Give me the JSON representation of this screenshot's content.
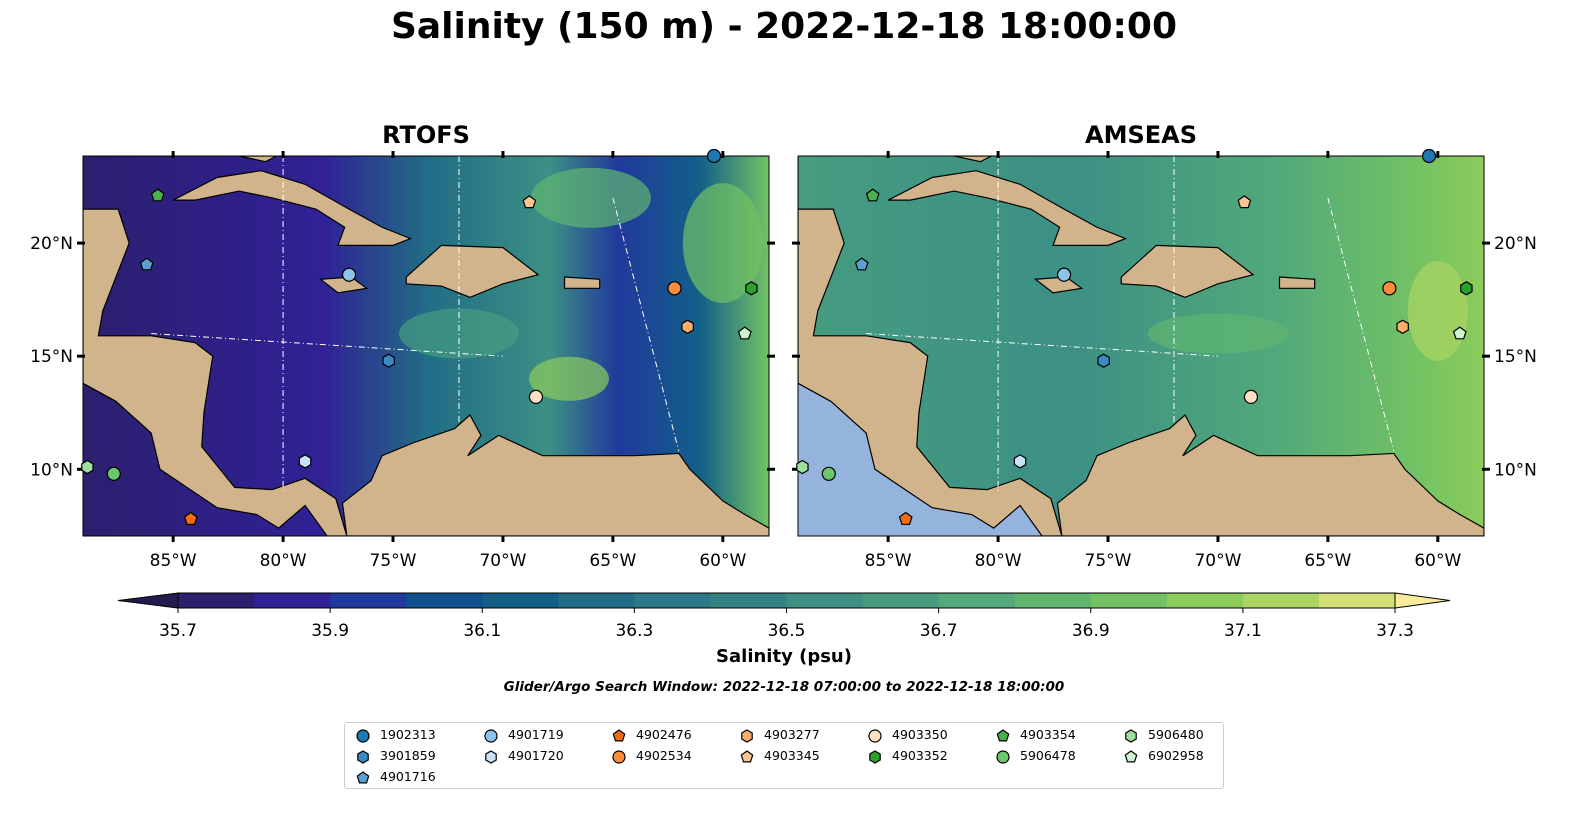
{
  "title": "Salinity (150 m) - 2022-12-18 18:00:00",
  "panels": [
    {
      "title": "RTOFS",
      "model": "rtofs"
    },
    {
      "title": "AMSEAS",
      "model": "amseas"
    }
  ],
  "lon_ticks": [
    {
      "value": -85,
      "label": "85°W"
    },
    {
      "value": -80,
      "label": "80°W"
    },
    {
      "value": -75,
      "label": "75°W"
    },
    {
      "value": -70,
      "label": "70°W"
    },
    {
      "value": -65,
      "label": "65°W"
    },
    {
      "value": -60,
      "label": "60°W"
    }
  ],
  "lat_ticks": [
    {
      "value": 20,
      "label": "20°N"
    },
    {
      "value": 15,
      "label": "15°N"
    },
    {
      "value": 10,
      "label": "10°N"
    }
  ],
  "extent": {
    "lon": [
      -89.1,
      -57.9
    ],
    "lat": [
      7.05,
      23.85
    ]
  },
  "colorbar": {
    "label": "Salinity (psu)",
    "min": 35.7,
    "max": 37.3,
    "step": 0.1,
    "tick_labels": [
      "35.7",
      "35.9",
      "36.1",
      "36.3",
      "36.5",
      "36.7",
      "36.9",
      "37.1",
      "37.3"
    ],
    "colors": [
      "#2b1f6e",
      "#302196",
      "#21399c",
      "#10508f",
      "#126088",
      "#216c86",
      "#2b7886",
      "#338385",
      "#3c9084",
      "#469c80",
      "#52a97a",
      "#60b671",
      "#72c264",
      "#8ccc5b",
      "#abd462",
      "#d2df76"
    ],
    "under_color": "#251b4f",
    "over_color": "#f7ec9a"
  },
  "search_window": "Glider/Argo Search Window: 2022-12-18 07:00:00 to 2022-12-18 18:00:00",
  "legend": [
    {
      "id": "1902313",
      "marker": "circle",
      "color": "#1f77b4",
      "lon": -60.4,
      "lat": 23.85
    },
    {
      "id": "3901859",
      "marker": "hexagon",
      "color": "#3a8bc2",
      "lon": -75.2,
      "lat": 14.8
    },
    {
      "id": "4901716",
      "marker": "pentagon",
      "color": "#5aa0d3",
      "lon": -86.2,
      "lat": 19.05
    },
    {
      "id": "4901719",
      "marker": "circle",
      "color": "#8fc3ea",
      "lon": -77.0,
      "lat": 18.6
    },
    {
      "id": "4901720",
      "marker": "hexagon",
      "color": "#c6e2f7",
      "lon": -79.0,
      "lat": 10.35
    },
    {
      "id": "4902476",
      "marker": "pentagon",
      "color": "#f46d0e",
      "lon": -84.2,
      "lat": 7.8
    },
    {
      "id": "4902534",
      "marker": "circle",
      "color": "#fd8d3c",
      "lon": -62.2,
      "lat": 18.0
    },
    {
      "id": "4903277",
      "marker": "hexagon",
      "color": "#fdae6b",
      "lon": -61.6,
      "lat": 16.3
    },
    {
      "id": "4903345",
      "marker": "pentagon",
      "color": "#fdc591",
      "lon": -68.8,
      "lat": 21.8
    },
    {
      "id": "4903350",
      "marker": "circle",
      "color": "#fde0c5",
      "lon": -68.5,
      "lat": 13.2
    },
    {
      "id": "4903352",
      "marker": "hexagon",
      "color": "#2ca02c",
      "lon": -58.7,
      "lat": 18.0
    },
    {
      "id": "4903354",
      "marker": "pentagon",
      "color": "#4cb04c",
      "lon": -85.7,
      "lat": 22.1
    },
    {
      "id": "5906478",
      "marker": "circle",
      "color": "#6cc66c",
      "lon": -87.7,
      "lat": 9.8
    },
    {
      "id": "5906480",
      "marker": "hexagon",
      "color": "#9ee09e",
      "lon": -88.9,
      "lat": 10.1
    },
    {
      "id": "6902958",
      "marker": "pentagon",
      "color": "#ccf5cc",
      "lon": -59.0,
      "lat": 16.0
    }
  ]
}
